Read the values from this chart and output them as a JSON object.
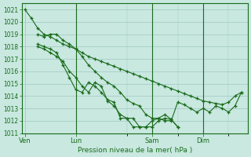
{
  "bg_color": "#c8e8e0",
  "grid_color": "#a0c8c0",
  "line_color": "#1a6b1a",
  "xlabel_text": "Pression niveau de la mer( hPa )",
  "ylim": [
    1011,
    1021.5
  ],
  "yticks": [
    1011,
    1012,
    1013,
    1014,
    1015,
    1016,
    1017,
    1018,
    1019,
    1020,
    1021
  ],
  "xtick_labels": [
    "Ven",
    "Lun",
    "Sam",
    "Dim"
  ],
  "xtick_positions": [
    0,
    8,
    20,
    28
  ],
  "vline_positions": [
    8,
    20,
    28
  ],
  "xlim": [
    -0.5,
    35
  ],
  "series": [
    {
      "x": [
        0,
        1,
        2,
        3,
        4,
        5,
        6,
        7,
        8,
        9,
        10,
        11,
        12,
        13,
        14,
        15,
        16,
        17,
        18,
        19,
        20,
        21,
        22,
        23,
        24,
        25,
        26,
        27,
        28,
        29,
        30,
        31,
        32,
        33,
        34
      ],
      "y": [
        1021.0,
        1020.3,
        1019.5,
        1019.0,
        1018.8,
        1018.5,
        1018.2,
        1018.0,
        1017.8,
        1017.5,
        1017.2,
        1017.0,
        1016.8,
        1016.6,
        1016.4,
        1016.2,
        1016.0,
        1015.8,
        1015.6,
        1015.4,
        1015.2,
        1015.0,
        1014.8,
        1014.6,
        1014.4,
        1014.2,
        1014.0,
        1013.8,
        1013.6,
        1013.5,
        1013.4,
        1013.3,
        1013.5,
        1014.0,
        1014.3
      ]
    },
    {
      "x": [
        2,
        3,
        4,
        5,
        6,
        7,
        8,
        9,
        10,
        11,
        12,
        13,
        14,
        15,
        16,
        17,
        18,
        19,
        20,
        21,
        22,
        23,
        24,
        25,
        26,
        27,
        28,
        29,
        30,
        31,
        32,
        33,
        34
      ],
      "y": [
        1019.0,
        1018.8,
        1019.0,
        1019.0,
        1018.5,
        1018.2,
        1017.8,
        1017.2,
        1016.5,
        1016.0,
        1015.5,
        1015.1,
        1014.8,
        1014.3,
        1013.7,
        1013.4,
        1013.2,
        1012.5,
        1012.2,
        1012.2,
        1012.0,
        1012.0,
        1013.5,
        1013.3,
        1013.0,
        1012.7,
        1013.0,
        1012.7,
        1013.2,
        1013.0,
        1012.7,
        1013.2,
        1014.3
      ]
    },
    {
      "x": [
        2,
        3,
        4,
        5,
        6,
        7,
        8,
        9,
        10,
        11,
        12,
        13,
        14,
        15,
        16,
        17,
        18,
        19,
        20,
        21,
        22,
        23,
        24
      ],
      "y": [
        1018.2,
        1018.0,
        1017.8,
        1017.5,
        1016.5,
        1015.5,
        1014.5,
        1014.3,
        1015.1,
        1014.8,
        1014.3,
        1013.7,
        1013.5,
        1012.2,
        1012.2,
        1011.5,
        1011.5,
        1011.5,
        1011.5,
        1012.0,
        1012.2,
        1012.1,
        1011.5
      ]
    },
    {
      "x": [
        2,
        3,
        4,
        5,
        6,
        7,
        8,
        9,
        10,
        11,
        12,
        13,
        14,
        15,
        16,
        17,
        18,
        19,
        20,
        21,
        22,
        23,
        24
      ],
      "y": [
        1018.0,
        1017.8,
        1017.5,
        1017.2,
        1016.8,
        1016.0,
        1015.5,
        1014.8,
        1014.3,
        1015.1,
        1014.8,
        1013.6,
        1013.2,
        1012.5,
        1012.2,
        1012.2,
        1011.5,
        1011.5,
        1012.0,
        1012.2,
        1012.5,
        1012.1,
        1011.5
      ]
    }
  ]
}
